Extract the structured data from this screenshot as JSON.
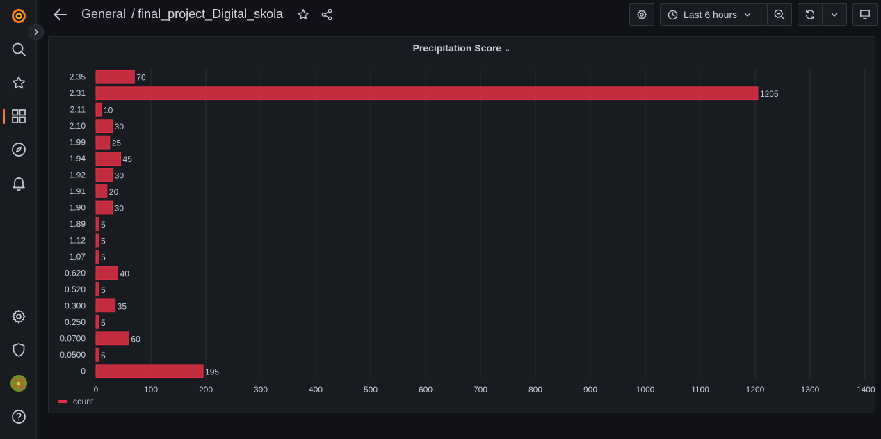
{
  "topbar": {
    "folder": "General",
    "separator": "/",
    "dashboard_title": "final_project_Digital_skola",
    "time_range": "Last 6 hours"
  },
  "sidebar": {
    "items": [
      "grafana-logo-icon",
      "search-icon",
      "star-icon",
      "dashboards-icon",
      "explore-icon",
      "alerting-icon",
      "configuration-icon",
      "shield-icon",
      "avatar",
      "help-icon"
    ]
  },
  "panel": {
    "title": "Precipitation Score",
    "legend": "count"
  },
  "colors": {
    "bar": "#e02f44",
    "accent": "#f55f3e",
    "background": "#111217",
    "panel": "#181b1f"
  },
  "chart_data": {
    "type": "bar",
    "orientation": "horizontal",
    "categories": [
      "2.35",
      "2.31",
      "2.11",
      "2.10",
      "1.99",
      "1.94",
      "1.92",
      "1.91",
      "1.90",
      "1.89",
      "1.12",
      "1.07",
      "0.620",
      "0.520",
      "0.300",
      "0.250",
      "0.0700",
      "0.0500",
      "0"
    ],
    "series": [
      {
        "name": "count",
        "values": [
          70,
          1205,
          10,
          30,
          25,
          45,
          30,
          20,
          30,
          5,
          5,
          5,
          40,
          5,
          35,
          5,
          60,
          5,
          195
        ]
      }
    ],
    "xlim": [
      0,
      1400
    ],
    "xticks": [
      "0",
      "100",
      "200",
      "300",
      "400",
      "500",
      "600",
      "700",
      "800",
      "900",
      "1000",
      "1100",
      "1200",
      "1300",
      "1400"
    ],
    "grid": true,
    "legend_position": "bottom-left"
  }
}
